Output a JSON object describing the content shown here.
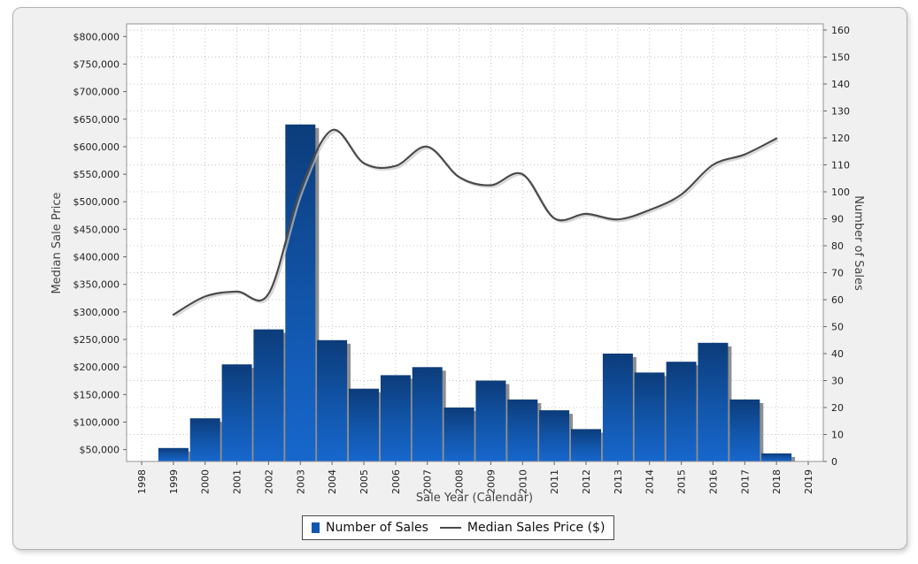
{
  "chart_data": {
    "type": "combo-bar-line",
    "title": "",
    "x_axis": {
      "label": "Sale Year (Calendar)",
      "tick_years": [
        1998,
        1999,
        2000,
        2001,
        2002,
        2003,
        2004,
        2005,
        2006,
        2007,
        2008,
        2009,
        2010,
        2011,
        2012,
        2013,
        2014,
        2015,
        2016,
        2017,
        2018,
        2019
      ]
    },
    "y_left": {
      "label": "Median Sale Price",
      "tick_values": [
        50000,
        100000,
        150000,
        200000,
        250000,
        300000,
        350000,
        400000,
        450000,
        500000,
        550000,
        600000,
        650000,
        700000,
        750000,
        800000
      ],
      "tick_labels": [
        "$50,000",
        "$100,000",
        "$150,000",
        "$200,000",
        "$250,000",
        "$300,000",
        "$350,000",
        "$400,000",
        "$450,000",
        "$500,000",
        "$550,000",
        "$600,000",
        "$650,000",
        "$700,000",
        "$750,000",
        "$800,000"
      ]
    },
    "y_right": {
      "label": "Number of Sales",
      "tick_values": [
        0,
        10,
        20,
        30,
        40,
        50,
        60,
        70,
        80,
        90,
        100,
        110,
        120,
        130,
        140,
        150,
        160
      ]
    },
    "series": [
      {
        "name": "Number of Sales",
        "type": "bar",
        "axis": "right",
        "years": [
          1999,
          2000,
          2001,
          2002,
          2003,
          2004,
          2005,
          2006,
          2007,
          2008,
          2009,
          2010,
          2011,
          2012,
          2013,
          2014,
          2015,
          2016,
          2017,
          2018
        ],
        "values": [
          5,
          16,
          36,
          49,
          125,
          45,
          27,
          32,
          35,
          20,
          30,
          23,
          19,
          12,
          40,
          33,
          37,
          44,
          23,
          3
        ]
      },
      {
        "name": "Median Sales Price ($)",
        "type": "line",
        "axis": "left",
        "years": [
          1999,
          2000,
          2001,
          2002,
          2003,
          2004,
          2005,
          2006,
          2007,
          2008,
          2009,
          2010,
          2011,
          2012,
          2013,
          2014,
          2015,
          2016,
          2017,
          2018
        ],
        "values": [
          295000,
          328000,
          337000,
          333000,
          520000,
          630000,
          570000,
          565000,
          600000,
          545000,
          530000,
          550000,
          470000,
          478000,
          468000,
          485000,
          513000,
          567000,
          586000,
          615000
        ]
      }
    ],
    "legend": {
      "position": "bottom-center",
      "items": [
        "Number of Sales",
        "Median Sales Price ($)"
      ]
    },
    "grid": "dotted-both-directions",
    "colors": {
      "bar_top": "#0c3c7a",
      "bar_mid": "#1256ab",
      "bar_bottom": "#1767cd",
      "bar_shadow": "#8f8f8f",
      "line": "#4a4a4a",
      "line_shadow": "#c6c6c6",
      "grid": "#c4c4c4",
      "plot_border": "#949494",
      "plot_bg": "#ffffff",
      "card_bg": "#f0f0f0",
      "card_border": "#b3b3b3",
      "tick_text": "#222222",
      "title_text": "#444444",
      "legend_swatch_blue": "#1257ae"
    }
  }
}
